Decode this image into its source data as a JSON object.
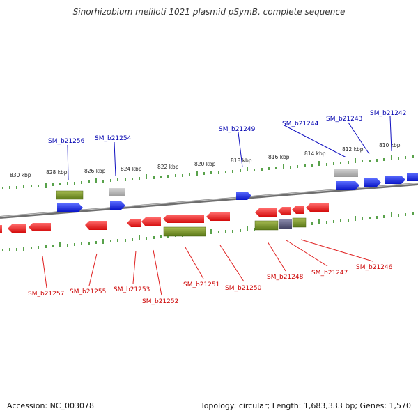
{
  "title": "Sinorhizobium meliloti 1021 plasmid pSymB, complete sequence",
  "footer": {
    "accession": "Accession: NC_003078",
    "summary": "Topology: circular; Length: 1,683,333 bp; Genes: 1,570"
  },
  "scale_ticks": [
    "830 kbp",
    "828 kbp",
    "826 kbp",
    "824 kbp",
    "822 kbp",
    "820 kbp",
    "818 kbp",
    "816 kbp",
    "814 kbp",
    "812 kbp",
    "810 kbp"
  ],
  "top_labels": [
    "SM_b21256",
    "SM_b21254",
    "SM_b21249",
    "SM_b21244",
    "SM_b21243",
    "SM_b21242"
  ],
  "bottom_labels": [
    "SM_b21257",
    "SM_b21255",
    "SM_b21253",
    "SM_b21252",
    "SM_b21251",
    "SM_b21250",
    "SM_b21248",
    "SM_b21247",
    "SM_b21246"
  ],
  "colors": {
    "forward_cds": "#0a16e0",
    "reverse_cds": "#e81010",
    "gene": "#6b8a1e",
    "other_feature": "#b0b0b0",
    "pseudo": "#555577",
    "backbone": "#8a8a8a",
    "tick": "#2f8a1e",
    "top_label": "#0000b0",
    "bottom_label": "#cc0000"
  }
}
